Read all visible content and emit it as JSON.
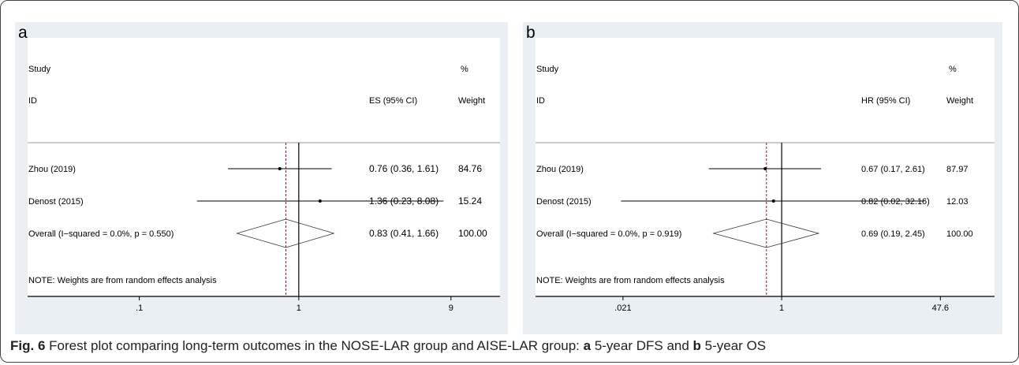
{
  "chart_data": [
    {
      "type": "forest",
      "panel_letter": "a",
      "header": {
        "study": "Study",
        "id": "ID",
        "effect": "ES (95% CI)",
        "pct": "%",
        "weight": "Weight"
      },
      "studies": [
        {
          "label": "Zhou (2019)",
          "est": 0.76,
          "lo": 0.36,
          "hi": 1.61,
          "ci_text": "0.76 (0.36, 1.61)",
          "weight": "84.76"
        },
        {
          "label": "Denost (2015)",
          "est": 1.36,
          "lo": 0.23,
          "hi": 8.08,
          "ci_text": "1.36 (0.23, 8.08)",
          "weight": "15.24"
        }
      ],
      "overall": {
        "label": "Overall  (I−squared = 0.0%, p = 0.550)",
        "est": 0.83,
        "lo": 0.41,
        "hi": 1.66,
        "ci_text": "0.83 (0.41, 1.66)",
        "weight": "100.00"
      },
      "note": "NOTE: Weights are from random effects analysis",
      "x_scale": "log",
      "x_ticks": [
        0.1,
        1,
        9
      ],
      "x_tick_labels": [
        ".1",
        "1",
        "9"
      ],
      "xlim": [
        0.0287,
        16.5
      ],
      "null_line": 1
    },
    {
      "type": "forest",
      "panel_letter": "b",
      "header": {
        "study": "Study",
        "id": "ID",
        "effect": "HR (95% CI)",
        "pct": "%",
        "weight": "Weight"
      },
      "studies": [
        {
          "label": "Zhou (2019)",
          "est": 0.67,
          "lo": 0.17,
          "hi": 2.61,
          "ci_text": "0.67 (0.17, 2.61)",
          "weight": "87.97"
        },
        {
          "label": "Denost (2015)",
          "est": 0.82,
          "lo": 0.02,
          "hi": 32.16,
          "ci_text": "0.82 (0.02, 32.16)",
          "weight": "12.03"
        }
      ],
      "overall": {
        "label": "Overall  (I−squared = 0.0%, p = 0.919)",
        "est": 0.69,
        "lo": 0.19,
        "hi": 2.45,
        "ci_text": "0.69 (0.19, 2.45)",
        "weight": "100.00"
      },
      "note": "NOTE: Weights are from random effects analysis",
      "x_scale": "log",
      "x_ticks": [
        0.021,
        1,
        47.6
      ],
      "x_tick_labels": [
        ".021",
        "1",
        "47.6"
      ],
      "xlim": [
        0.0048,
        178
      ],
      "null_line": 1
    }
  ],
  "caption": {
    "fig": "Fig. 6",
    "text_1": " Forest plot comparing long-term outcomes in the NOSE-LAR group and AISE-LAR group: ",
    "a": "a",
    "text_2": " 5-year DFS and ",
    "b": "b",
    "text_3": " 5-year OS"
  },
  "colors": {
    "panel_bg": "#e9eff2",
    "plot_bg": "#ffffff",
    "line": "#000000",
    "null_line": "#8b1a1a"
  }
}
